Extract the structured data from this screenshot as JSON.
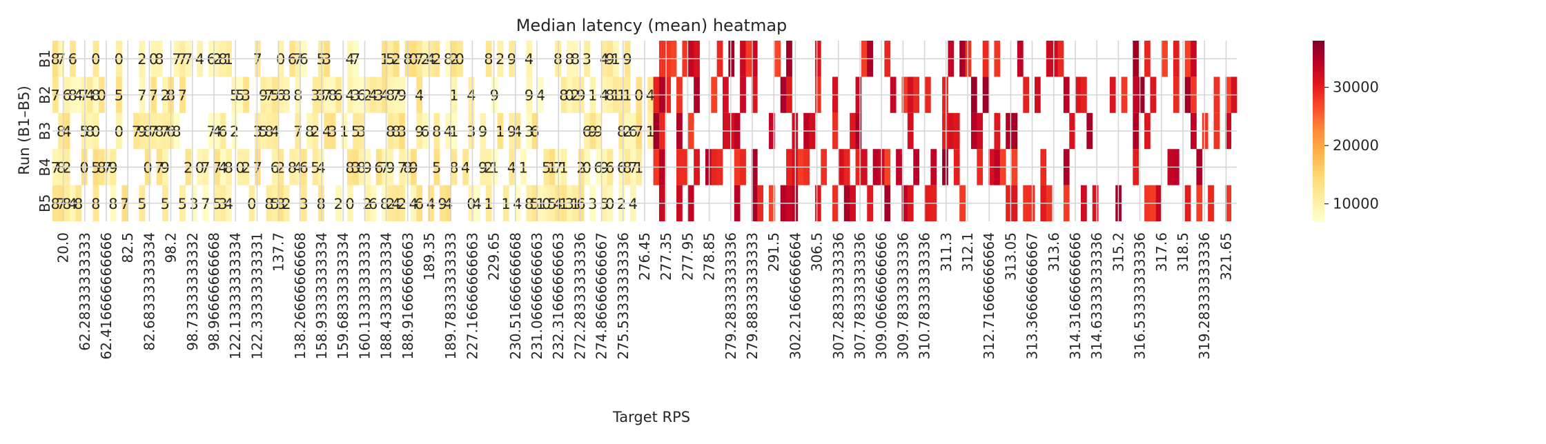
{
  "chart_data": {
    "type": "heatmap",
    "title": "Median latency (mean) heatmap",
    "xlabel": "Target RPS",
    "ylabel": "Run (B1–B5)",
    "rows": [
      "B1",
      "B2",
      "B3",
      "B4",
      "B5"
    ],
    "x_tick_labels": [
      "20.0",
      "62.28333333333",
      "62.416666666666",
      "82.5",
      "82.68333333334",
      "98.2",
      "98.73333333332",
      "98.96666666668",
      "122.13333333334",
      "122.33333333331",
      "137.7",
      "138.26666666668",
      "158.93333333334",
      "159.68333333334",
      "160.13333333333",
      "188.43333333334",
      "188.91666666663",
      "189.35",
      "189.78333333333",
      "227.16666666663",
      "229.65",
      "230.51666666668",
      "231.06666666663",
      "232.31666666663",
      "272.28333333336",
      "274.86666666667",
      "275.53333333336",
      "276.45",
      "277.35",
      "277.95",
      "278.85",
      "279.28333333336",
      "279.88333333333",
      "291.5",
      "302.21666666664",
      "306.5",
      "307.28333333336",
      "307.78333333336",
      "309.06666666666",
      "309.78333333336",
      "310.78333333336",
      "311.3",
      "312.1",
      "312.71666666664",
      "313.05",
      "313.36666666667",
      "313.6",
      "314.31666666666",
      "314.63333333336",
      "315.2",
      "316.53333333336",
      "317.6",
      "318.5",
      "319.28333333336",
      "321.65"
    ],
    "colorbar": {
      "min": 7000,
      "max": 38000,
      "ticks": [
        10000,
        20000,
        30000
      ],
      "tick_labels": [
        "10000",
        "20000",
        "30000"
      ],
      "colormap": "YlOrRd"
    },
    "cell_label_samples": {
      "B1": [
        "8",
        "7",
        "6",
        "0",
        "0",
        "2",
        "0",
        "8",
        "7",
        "7",
        "7",
        "4",
        "6",
        "2",
        "8",
        "1",
        "7",
        "0",
        "6",
        "7",
        "6",
        "5",
        "3",
        "4",
        "7",
        "1",
        "5",
        "2",
        "8",
        "0",
        "7",
        "2",
        "4",
        "2",
        "8",
        "2",
        "0",
        "8",
        "2",
        "9",
        "4",
        "8",
        "8",
        "8",
        "3",
        "4",
        "9",
        "1",
        "9",
        "2",
        "1",
        "0",
        "5",
        "9",
        "9",
        "1",
        "0",
        "2",
        "0",
        "2",
        "6",
        "9",
        "1",
        "5",
        "7",
        "1",
        "4",
        "7",
        "2",
        "0",
        "2",
        "0",
        "5",
        "1",
        "4",
        "4",
        "4",
        "5",
        "8",
        "8",
        "4",
        "0",
        "4",
        "8",
        "6"
      ],
      "B2": [
        "7",
        "6",
        "8",
        "4",
        "7",
        "4",
        "8",
        "0",
        "5",
        "7",
        "7",
        "2",
        "8",
        "7",
        "5",
        "5",
        "3",
        "9",
        "7",
        "5",
        "6",
        "8",
        "8",
        "3",
        "3",
        "7",
        "8",
        "6",
        "4",
        "3",
        "6",
        "2",
        "4",
        "3",
        "4",
        "8",
        "7",
        "9",
        "4",
        "1",
        "4",
        "9",
        "9",
        "4",
        "8",
        "0",
        "2",
        "9",
        "1",
        "4",
        "8",
        "1",
        "1",
        "1",
        "0",
        "4",
        "8",
        "2",
        "6",
        "1",
        "0",
        "9",
        "7",
        "4",
        "4",
        "4",
        "2",
        "6",
        "4",
        "2",
        "6",
        "4",
        "6",
        "5",
        "0",
        "6",
        "3",
        "4",
        "8"
      ],
      "B3": [
        "8",
        "4",
        "5",
        "8",
        "0",
        "0",
        "7",
        "9",
        "8",
        "7",
        "8",
        "7",
        "6",
        "8",
        "7",
        "4",
        "6",
        "2",
        "3",
        "5",
        "8",
        "4",
        "7",
        "8",
        "2",
        "4",
        "3",
        "1",
        "5",
        "3",
        "8",
        "8",
        "3",
        "9",
        "6",
        "8",
        "4",
        "1",
        "3",
        "9",
        "1",
        "9",
        "4",
        "3",
        "6",
        "6",
        "9",
        "9",
        "8",
        "2",
        "6",
        "7",
        "1",
        "0",
        "0",
        "9",
        "4",
        "5",
        "3",
        "9",
        "8",
        "5",
        "4",
        "2",
        "4",
        "8",
        "9",
        "4",
        "2",
        "9",
        "1",
        "3",
        "6",
        "0",
        "1",
        "4",
        "5",
        "1",
        "9",
        "8",
        "4",
        "4",
        "0",
        "4",
        "8",
        "8"
      ],
      "B4": [
        "7",
        "8",
        "2",
        "0",
        "5",
        "8",
        "7",
        "9",
        "0",
        "7",
        "9",
        "2",
        "0",
        "7",
        "7",
        "4",
        "8",
        "0",
        "2",
        "7",
        "6",
        "2",
        "8",
        "4",
        "6",
        "5",
        "4",
        "8",
        "3",
        "8",
        "9",
        "6",
        "7",
        "9",
        "7",
        "8",
        "9",
        "5",
        "8",
        "4",
        "9",
        "2",
        "1",
        "4",
        "1",
        "5",
        "1",
        "7",
        "1",
        "2",
        "0",
        "6",
        "9",
        "6",
        "6",
        "8",
        "7",
        "1",
        "0",
        "4",
        "6",
        "1",
        "9",
        "8",
        "6",
        "5",
        "8",
        "6",
        "5",
        "6",
        "7",
        "6"
      ],
      "B5": [
        "8",
        "7",
        "8",
        "4",
        "8",
        "8",
        "8",
        "7",
        "5",
        "5",
        "5",
        "3",
        "7",
        "5",
        "3",
        "4",
        "0",
        "8",
        "5",
        "8",
        "2",
        "3",
        "8",
        "2",
        "0",
        "2",
        "6",
        "8",
        "2",
        "4",
        "2",
        "4",
        "6",
        "4",
        "9",
        "4",
        "0",
        "4",
        "1",
        "1",
        "4",
        "8",
        "5",
        "1",
        "0",
        "5",
        "4",
        "1",
        "3",
        "1",
        "6",
        "3",
        "5",
        "0",
        "2",
        "4",
        "4",
        "5",
        "3",
        "1",
        "6",
        "2",
        "2",
        "6",
        "3",
        "4",
        "1",
        "6",
        "3",
        "2",
        "8"
      ]
    }
  }
}
